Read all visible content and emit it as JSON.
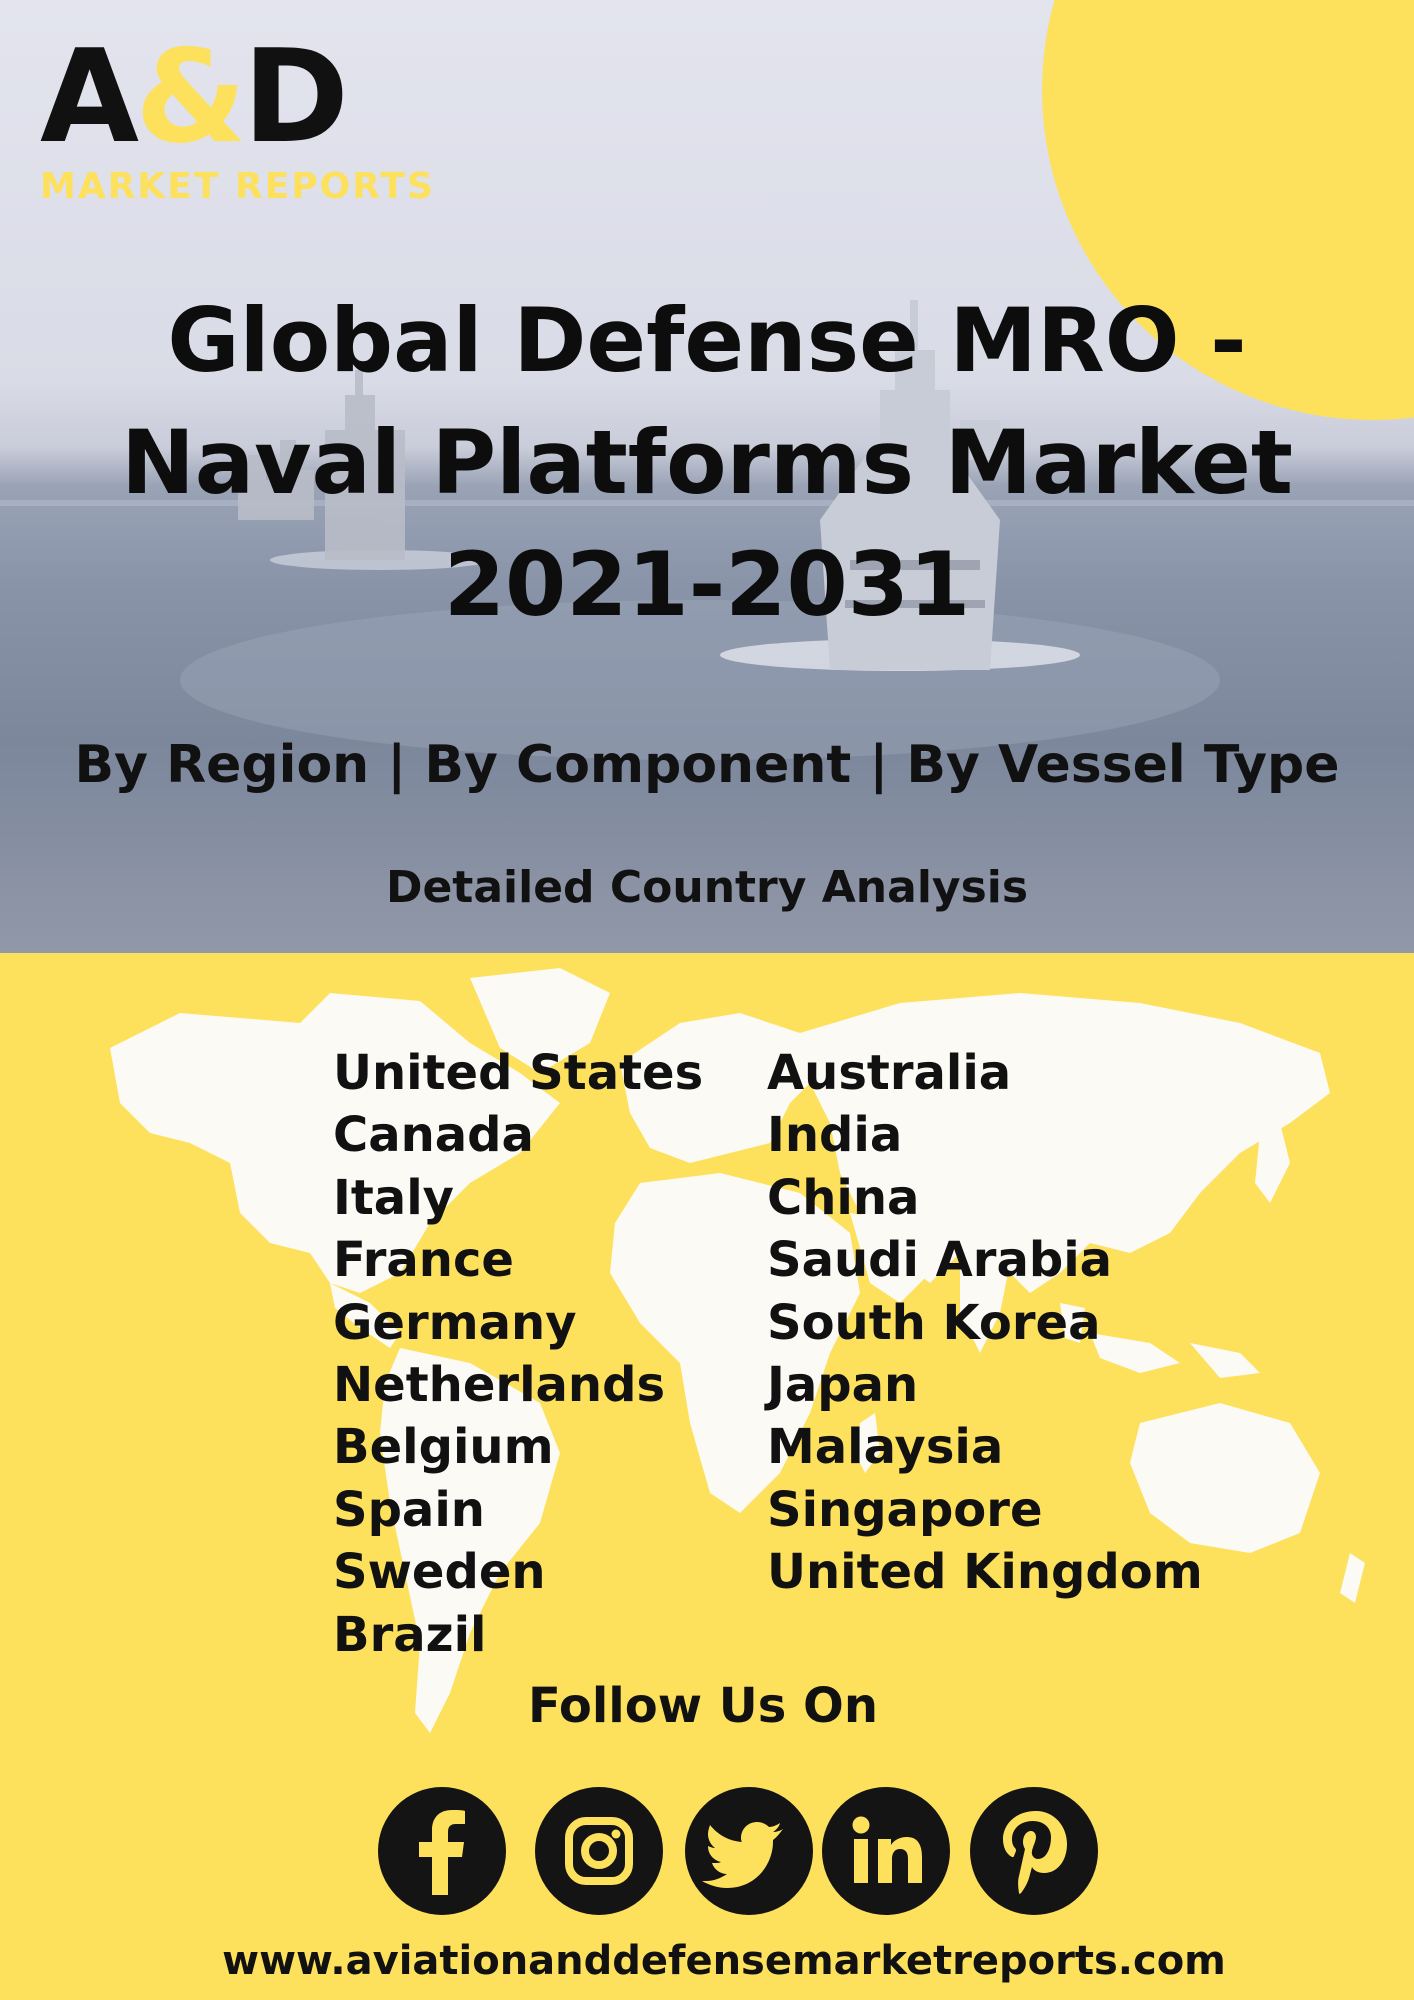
{
  "logo": {
    "main_left": "A",
    "main_amp": "&",
    "main_right": "D",
    "sub": "MARKET REPORTS"
  },
  "title_lines": [
    "Global Defense MRO -",
    "Naval Platforms Market",
    "2021-2031"
  ],
  "byline": "By Region | By Component | By Vessel Type",
  "detail": "Detailed Country Analysis",
  "countries_left": [
    "United States",
    "Canada",
    "Italy",
    "France",
    "Germany",
    "Netherlands",
    "Belgium",
    "Spain",
    "Sweden",
    "Brazil"
  ],
  "countries_right": [
    "Australia",
    "India",
    "China",
    "Saudi Arabia",
    "South Korea",
    "Japan",
    "Malaysia",
    "Singapore",
    "United Kingdom"
  ],
  "follow": "Follow Us On",
  "social_icons": [
    "facebook-icon",
    "instagram-icon",
    "twitter-icon",
    "linkedin-icon",
    "pinterest-icon"
  ],
  "website": "www.aviationanddefensemarketreports.com",
  "colors": {
    "accent_yellow": "#fde15c",
    "text_dark": "#111111",
    "map_white": "#fbfaf4"
  }
}
